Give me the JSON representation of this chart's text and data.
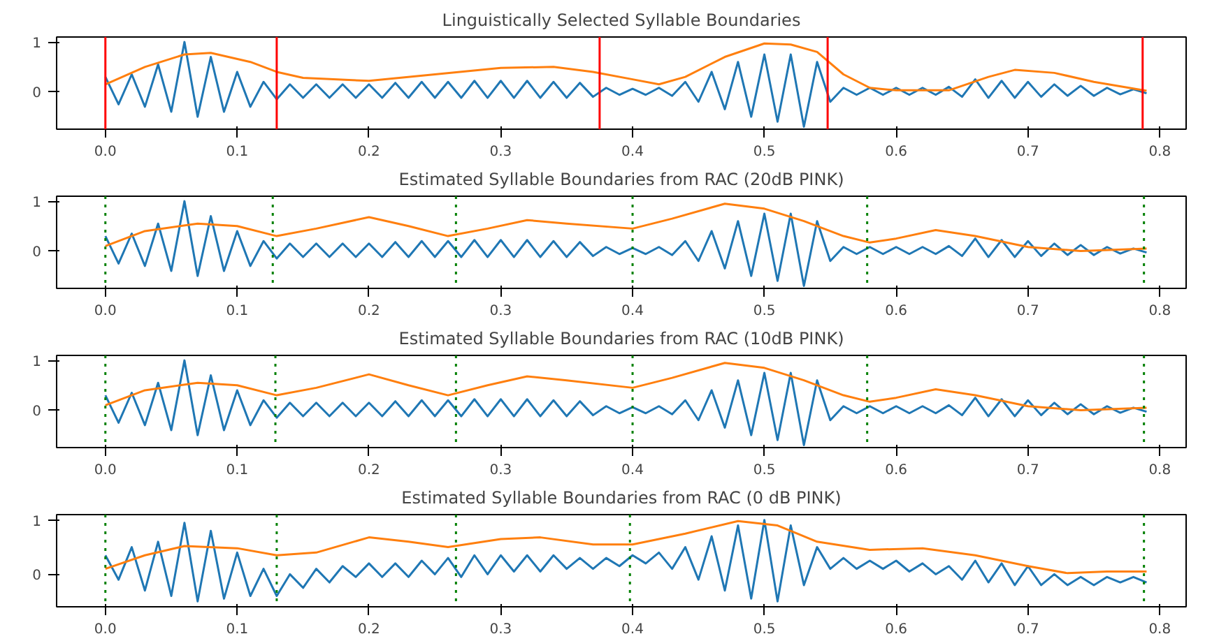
{
  "chart_data": [
    {
      "type": "line",
      "title": "Linguistically Selected Syllable Boundaries",
      "xlim": [
        -0.037,
        0.82
      ],
      "ylim": [
        -0.75,
        1.1
      ],
      "xticks": [
        {
          "value": 0,
          "label": "0.0"
        },
        {
          "value": 0.1,
          "label": "0.1"
        },
        {
          "value": 0.2,
          "label": "0.2"
        },
        {
          "value": 0.3,
          "label": "0.3"
        },
        {
          "value": 0.4,
          "label": "0.4"
        },
        {
          "value": 0.5,
          "label": "0.5"
        },
        {
          "value": 0.6,
          "label": "0.6"
        },
        {
          "value": 0.7,
          "label": "0.7"
        },
        {
          "value": 0.8,
          "label": "0.8"
        }
      ],
      "yticks": [
        0,
        1
      ],
      "series": [
        {
          "color": "#1f77b4",
          "x": [
            0,
            0.01,
            0.02,
            0.03,
            0.04,
            0.05,
            0.06,
            0.07,
            0.08,
            0.09,
            0.1,
            0.11,
            0.12,
            0.13,
            0.14,
            0.15,
            0.16,
            0.17,
            0.18,
            0.19,
            0.2,
            0.21,
            0.22,
            0.23,
            0.24,
            0.25,
            0.26,
            0.27,
            0.28,
            0.29,
            0.3,
            0.31,
            0.32,
            0.33,
            0.34,
            0.35,
            0.36,
            0.37,
            0.38,
            0.39,
            0.4,
            0.41,
            0.42,
            0.43,
            0.44,
            0.45,
            0.46,
            0.47,
            0.48,
            0.49,
            0.5,
            0.51,
            0.52,
            0.53,
            0.54,
            0.55,
            0.56,
            0.57,
            0.58,
            0.59,
            0.6,
            0.61,
            0.62,
            0.63,
            0.64,
            0.65,
            0.66,
            0.67,
            0.68,
            0.69,
            0.7,
            0.71,
            0.72,
            0.73,
            0.74,
            0.75,
            0.76,
            0.77,
            0.78,
            0.79
          ],
          "values": [
            0.3,
            -0.25,
            0.35,
            -0.3,
            0.55,
            -0.4,
            1.0,
            -0.5,
            0.7,
            -0.4,
            0.4,
            -0.3,
            0.2,
            -0.15,
            0.15,
            -0.12,
            0.15,
            -0.12,
            0.15,
            -0.12,
            0.15,
            -0.12,
            0.18,
            -0.12,
            0.2,
            -0.12,
            0.2,
            -0.12,
            0.22,
            -0.12,
            0.22,
            -0.12,
            0.22,
            -0.12,
            0.2,
            -0.12,
            0.18,
            -0.1,
            0.08,
            -0.06,
            0.06,
            -0.06,
            0.08,
            -0.08,
            0.2,
            -0.2,
            0.4,
            -0.35,
            0.6,
            -0.5,
            0.75,
            -0.6,
            0.75,
            -0.7,
            0.6,
            -0.2,
            0.08,
            -0.06,
            0.08,
            -0.06,
            0.08,
            -0.06,
            0.08,
            -0.06,
            0.1,
            -0.1,
            0.25,
            -0.12,
            0.22,
            -0.12,
            0.2,
            -0.1,
            0.15,
            -0.08,
            0.12,
            -0.08,
            0.08,
            -0.05,
            0.05,
            -0.03
          ]
        },
        {
          "color": "#ff7f0e",
          "x": [
            0,
            0.03,
            0.06,
            0.08,
            0.11,
            0.13,
            0.15,
            0.2,
            0.25,
            0.3,
            0.34,
            0.37,
            0.4,
            0.42,
            0.44,
            0.47,
            0.5,
            0.52,
            0.54,
            0.56,
            0.58,
            0.6,
            0.64,
            0.67,
            0.69,
            0.72,
            0.75,
            0.79
          ],
          "values": [
            0.15,
            0.5,
            0.75,
            0.78,
            0.6,
            0.4,
            0.28,
            0.22,
            0.35,
            0.48,
            0.5,
            0.4,
            0.25,
            0.15,
            0.3,
            0.7,
            0.97,
            0.95,
            0.8,
            0.35,
            0.08,
            0.03,
            0.03,
            0.3,
            0.44,
            0.38,
            0.2,
            0.02
          ]
        }
      ],
      "ref_lines": [
        {
          "axis": "x",
          "value": 0,
          "color": "#ff0000",
          "line_style": "solid"
        },
        {
          "axis": "x",
          "value": 0.13,
          "color": "#ff0000",
          "line_style": "solid"
        },
        {
          "axis": "x",
          "value": 0.375,
          "color": "#ff0000",
          "line_style": "solid"
        },
        {
          "axis": "x",
          "value": 0.548,
          "color": "#ff0000",
          "line_style": "solid"
        },
        {
          "axis": "x",
          "value": 0.787,
          "color": "#ff0000",
          "line_style": "solid"
        }
      ]
    },
    {
      "type": "line",
      "title": "Estimated Syllable Boundaries from RAC (20dB PINK)",
      "xlim": [
        -0.037,
        0.82
      ],
      "ylim": [
        -0.75,
        1.1
      ],
      "xticks": [
        {
          "value": 0,
          "label": "0.0"
        },
        {
          "value": 0.1,
          "label": "0.1"
        },
        {
          "value": 0.2,
          "label": "0.2"
        },
        {
          "value": 0.3,
          "label": "0.3"
        },
        {
          "value": 0.4,
          "label": "0.4"
        },
        {
          "value": 0.5,
          "label": "0.5"
        },
        {
          "value": 0.6,
          "label": "0.6"
        },
        {
          "value": 0.7,
          "label": "0.7"
        },
        {
          "value": 0.8,
          "label": "0.8"
        }
      ],
      "yticks": [
        0,
        1
      ],
      "series": [
        {
          "color": "#1f77b4",
          "x": [
            0,
            0.01,
            0.02,
            0.03,
            0.04,
            0.05,
            0.06,
            0.07,
            0.08,
            0.09,
            0.1,
            0.11,
            0.12,
            0.13,
            0.14,
            0.15,
            0.16,
            0.17,
            0.18,
            0.19,
            0.2,
            0.21,
            0.22,
            0.23,
            0.24,
            0.25,
            0.26,
            0.27,
            0.28,
            0.29,
            0.3,
            0.31,
            0.32,
            0.33,
            0.34,
            0.35,
            0.36,
            0.37,
            0.38,
            0.39,
            0.4,
            0.41,
            0.42,
            0.43,
            0.44,
            0.45,
            0.46,
            0.47,
            0.48,
            0.49,
            0.5,
            0.51,
            0.52,
            0.53,
            0.54,
            0.55,
            0.56,
            0.57,
            0.58,
            0.59,
            0.6,
            0.61,
            0.62,
            0.63,
            0.64,
            0.65,
            0.66,
            0.67,
            0.68,
            0.69,
            0.7,
            0.71,
            0.72,
            0.73,
            0.74,
            0.75,
            0.76,
            0.77,
            0.78,
            0.79
          ],
          "values": [
            0.3,
            -0.25,
            0.35,
            -0.3,
            0.55,
            -0.4,
            1.0,
            -0.5,
            0.7,
            -0.4,
            0.4,
            -0.3,
            0.2,
            -0.15,
            0.15,
            -0.12,
            0.15,
            -0.12,
            0.15,
            -0.12,
            0.15,
            -0.12,
            0.18,
            -0.12,
            0.2,
            -0.12,
            0.2,
            -0.12,
            0.22,
            -0.12,
            0.22,
            -0.12,
            0.22,
            -0.12,
            0.2,
            -0.12,
            0.18,
            -0.1,
            0.08,
            -0.06,
            0.06,
            -0.06,
            0.08,
            -0.08,
            0.2,
            -0.2,
            0.4,
            -0.35,
            0.6,
            -0.5,
            0.75,
            -0.6,
            0.75,
            -0.7,
            0.6,
            -0.2,
            0.08,
            -0.06,
            0.08,
            -0.06,
            0.08,
            -0.06,
            0.08,
            -0.06,
            0.1,
            -0.1,
            0.25,
            -0.12,
            0.22,
            -0.12,
            0.2,
            -0.1,
            0.15,
            -0.08,
            0.12,
            -0.08,
            0.08,
            -0.05,
            0.05,
            -0.03
          ]
        },
        {
          "color": "#ff7f0e",
          "x": [
            0,
            0.03,
            0.07,
            0.1,
            0.13,
            0.16,
            0.2,
            0.23,
            0.26,
            0.29,
            0.32,
            0.35,
            0.4,
            0.43,
            0.47,
            0.5,
            0.53,
            0.56,
            0.58,
            0.6,
            0.63,
            0.66,
            0.7,
            0.74,
            0.79
          ],
          "values": [
            0.1,
            0.4,
            0.55,
            0.5,
            0.3,
            0.45,
            0.68,
            0.5,
            0.3,
            0.45,
            0.62,
            0.55,
            0.45,
            0.65,
            0.95,
            0.85,
            0.6,
            0.3,
            0.17,
            0.25,
            0.42,
            0.3,
            0.08,
            0.0,
            0.05
          ]
        }
      ],
      "ref_lines": [
        {
          "axis": "x",
          "value": 0,
          "color": "#008000",
          "line_style": "dotted"
        },
        {
          "axis": "x",
          "value": 0.127,
          "color": "#008000",
          "line_style": "dotted"
        },
        {
          "axis": "x",
          "value": 0.266,
          "color": "#008000",
          "line_style": "dotted"
        },
        {
          "axis": "x",
          "value": 0.4,
          "color": "#008000",
          "line_style": "dotted"
        },
        {
          "axis": "x",
          "value": 0.578,
          "color": "#008000",
          "line_style": "dotted"
        },
        {
          "axis": "x",
          "value": 0.788,
          "color": "#008000",
          "line_style": "dotted"
        }
      ]
    },
    {
      "type": "line",
      "title": "Estimated Syllable Boundaries from RAC (10dB PINK)",
      "xlim": [
        -0.037,
        0.82
      ],
      "ylim": [
        -0.75,
        1.1
      ],
      "xticks": [
        {
          "value": 0,
          "label": "0.0"
        },
        {
          "value": 0.1,
          "label": "0.1"
        },
        {
          "value": 0.2,
          "label": "0.2"
        },
        {
          "value": 0.3,
          "label": "0.3"
        },
        {
          "value": 0.4,
          "label": "0.4"
        },
        {
          "value": 0.5,
          "label": "0.5"
        },
        {
          "value": 0.6,
          "label": "0.6"
        },
        {
          "value": 0.7,
          "label": "0.7"
        },
        {
          "value": 0.8,
          "label": "0.8"
        }
      ],
      "yticks": [
        0,
        1
      ],
      "series": [
        {
          "color": "#1f77b4",
          "x": [
            0,
            0.01,
            0.02,
            0.03,
            0.04,
            0.05,
            0.06,
            0.07,
            0.08,
            0.09,
            0.1,
            0.11,
            0.12,
            0.13,
            0.14,
            0.15,
            0.16,
            0.17,
            0.18,
            0.19,
            0.2,
            0.21,
            0.22,
            0.23,
            0.24,
            0.25,
            0.26,
            0.27,
            0.28,
            0.29,
            0.3,
            0.31,
            0.32,
            0.33,
            0.34,
            0.35,
            0.36,
            0.37,
            0.38,
            0.39,
            0.4,
            0.41,
            0.42,
            0.43,
            0.44,
            0.45,
            0.46,
            0.47,
            0.48,
            0.49,
            0.5,
            0.51,
            0.52,
            0.53,
            0.54,
            0.55,
            0.56,
            0.57,
            0.58,
            0.59,
            0.6,
            0.61,
            0.62,
            0.63,
            0.64,
            0.65,
            0.66,
            0.67,
            0.68,
            0.69,
            0.7,
            0.71,
            0.72,
            0.73,
            0.74,
            0.75,
            0.76,
            0.77,
            0.78,
            0.79
          ],
          "values": [
            0.3,
            -0.25,
            0.35,
            -0.3,
            0.55,
            -0.4,
            1.0,
            -0.5,
            0.7,
            -0.4,
            0.4,
            -0.3,
            0.2,
            -0.15,
            0.15,
            -0.12,
            0.15,
            -0.12,
            0.15,
            -0.12,
            0.15,
            -0.12,
            0.18,
            -0.12,
            0.2,
            -0.12,
            0.2,
            -0.12,
            0.22,
            -0.12,
            0.22,
            -0.12,
            0.22,
            -0.12,
            0.2,
            -0.12,
            0.18,
            -0.1,
            0.08,
            -0.06,
            0.06,
            -0.06,
            0.08,
            -0.08,
            0.2,
            -0.2,
            0.4,
            -0.35,
            0.6,
            -0.5,
            0.75,
            -0.6,
            0.75,
            -0.7,
            0.6,
            -0.2,
            0.08,
            -0.06,
            0.08,
            -0.06,
            0.08,
            -0.06,
            0.08,
            -0.06,
            0.1,
            -0.1,
            0.25,
            -0.12,
            0.22,
            -0.12,
            0.2,
            -0.1,
            0.15,
            -0.08,
            0.12,
            -0.08,
            0.08,
            -0.05,
            0.05,
            -0.03
          ]
        },
        {
          "color": "#ff7f0e",
          "x": [
            0,
            0.03,
            0.07,
            0.1,
            0.13,
            0.16,
            0.2,
            0.23,
            0.26,
            0.29,
            0.32,
            0.35,
            0.4,
            0.43,
            0.47,
            0.5,
            0.53,
            0.56,
            0.58,
            0.6,
            0.63,
            0.66,
            0.7,
            0.74,
            0.79
          ],
          "values": [
            0.1,
            0.4,
            0.55,
            0.5,
            0.3,
            0.45,
            0.72,
            0.5,
            0.3,
            0.5,
            0.68,
            0.6,
            0.45,
            0.65,
            0.95,
            0.85,
            0.6,
            0.3,
            0.17,
            0.25,
            0.42,
            0.3,
            0.08,
            0.0,
            0.05
          ]
        }
      ],
      "ref_lines": [
        {
          "axis": "x",
          "value": 0,
          "color": "#008000",
          "line_style": "dotted"
        },
        {
          "axis": "x",
          "value": 0.129,
          "color": "#008000",
          "line_style": "dotted"
        },
        {
          "axis": "x",
          "value": 0.266,
          "color": "#008000",
          "line_style": "dotted"
        },
        {
          "axis": "x",
          "value": 0.4,
          "color": "#008000",
          "line_style": "dotted"
        },
        {
          "axis": "x",
          "value": 0.578,
          "color": "#008000",
          "line_style": "dotted"
        },
        {
          "axis": "x",
          "value": 0.788,
          "color": "#008000",
          "line_style": "dotted"
        }
      ]
    },
    {
      "type": "line",
      "title": "Estimated Syllable Boundaries from RAC (0 dB PINK)",
      "xlim": [
        -0.037,
        0.82
      ],
      "ylim": [
        -0.6,
        1.1
      ],
      "xticks": [
        {
          "value": 0,
          "label": "0.0"
        },
        {
          "value": 0.1,
          "label": "0.1"
        },
        {
          "value": 0.2,
          "label": "0.2"
        },
        {
          "value": 0.3,
          "label": "0.3"
        },
        {
          "value": 0.4,
          "label": "0.4"
        },
        {
          "value": 0.5,
          "label": "0.5"
        },
        {
          "value": 0.6,
          "label": "0.6"
        },
        {
          "value": 0.7,
          "label": "0.7"
        },
        {
          "value": 0.8,
          "label": "0.8"
        }
      ],
      "yticks": [
        0,
        1
      ],
      "series": [
        {
          "color": "#1f77b4",
          "x": [
            0,
            0.01,
            0.02,
            0.03,
            0.04,
            0.05,
            0.06,
            0.07,
            0.08,
            0.09,
            0.1,
            0.11,
            0.12,
            0.13,
            0.14,
            0.15,
            0.16,
            0.17,
            0.18,
            0.19,
            0.2,
            0.21,
            0.22,
            0.23,
            0.24,
            0.25,
            0.26,
            0.27,
            0.28,
            0.29,
            0.3,
            0.31,
            0.32,
            0.33,
            0.34,
            0.35,
            0.36,
            0.37,
            0.38,
            0.39,
            0.4,
            0.41,
            0.42,
            0.43,
            0.44,
            0.45,
            0.46,
            0.47,
            0.48,
            0.49,
            0.5,
            0.51,
            0.52,
            0.53,
            0.54,
            0.55,
            0.56,
            0.57,
            0.58,
            0.59,
            0.6,
            0.61,
            0.62,
            0.63,
            0.64,
            0.65,
            0.66,
            0.67,
            0.68,
            0.69,
            0.7,
            0.71,
            0.72,
            0.73,
            0.74,
            0.75,
            0.76,
            0.77,
            0.78,
            0.79
          ],
          "values": [
            0.35,
            -0.1,
            0.5,
            -0.3,
            0.6,
            -0.4,
            0.95,
            -0.5,
            0.8,
            -0.45,
            0.4,
            -0.4,
            0.1,
            -0.4,
            0.0,
            -0.25,
            0.1,
            -0.15,
            0.15,
            -0.05,
            0.2,
            -0.05,
            0.2,
            -0.05,
            0.25,
            0.0,
            0.3,
            -0.05,
            0.35,
            0.0,
            0.35,
            0.05,
            0.35,
            0.05,
            0.35,
            0.1,
            0.3,
            0.1,
            0.3,
            0.15,
            0.35,
            0.2,
            0.4,
            0.1,
            0.5,
            -0.1,
            0.7,
            -0.3,
            0.9,
            -0.45,
            1.0,
            -0.5,
            0.9,
            -0.2,
            0.5,
            0.1,
            0.3,
            0.1,
            0.25,
            0.1,
            0.25,
            0.05,
            0.2,
            0.0,
            0.15,
            -0.1,
            0.25,
            -0.15,
            0.2,
            -0.2,
            0.15,
            -0.2,
            0.0,
            -0.2,
            -0.05,
            -0.2,
            -0.05,
            -0.15,
            -0.05,
            -0.15
          ]
        },
        {
          "color": "#ff7f0e",
          "x": [
            0,
            0.03,
            0.06,
            0.1,
            0.13,
            0.16,
            0.2,
            0.23,
            0.26,
            0.3,
            0.33,
            0.37,
            0.4,
            0.44,
            0.48,
            0.51,
            0.54,
            0.58,
            0.62,
            0.66,
            0.7,
            0.73,
            0.76,
            0.79
          ],
          "values": [
            0.1,
            0.35,
            0.52,
            0.48,
            0.35,
            0.4,
            0.68,
            0.6,
            0.5,
            0.65,
            0.68,
            0.55,
            0.55,
            0.75,
            0.98,
            0.9,
            0.6,
            0.45,
            0.48,
            0.35,
            0.15,
            0.02,
            0.05,
            0.05
          ]
        }
      ],
      "ref_lines": [
        {
          "axis": "x",
          "value": 0,
          "color": "#008000",
          "line_style": "dotted"
        },
        {
          "axis": "x",
          "value": 0.13,
          "color": "#008000",
          "line_style": "dotted"
        },
        {
          "axis": "x",
          "value": 0.266,
          "color": "#008000",
          "line_style": "dotted"
        },
        {
          "axis": "x",
          "value": 0.398,
          "color": "#008000",
          "line_style": "dotted"
        },
        {
          "axis": "x",
          "value": 0.788,
          "color": "#008000",
          "line_style": "dotted"
        }
      ]
    }
  ]
}
